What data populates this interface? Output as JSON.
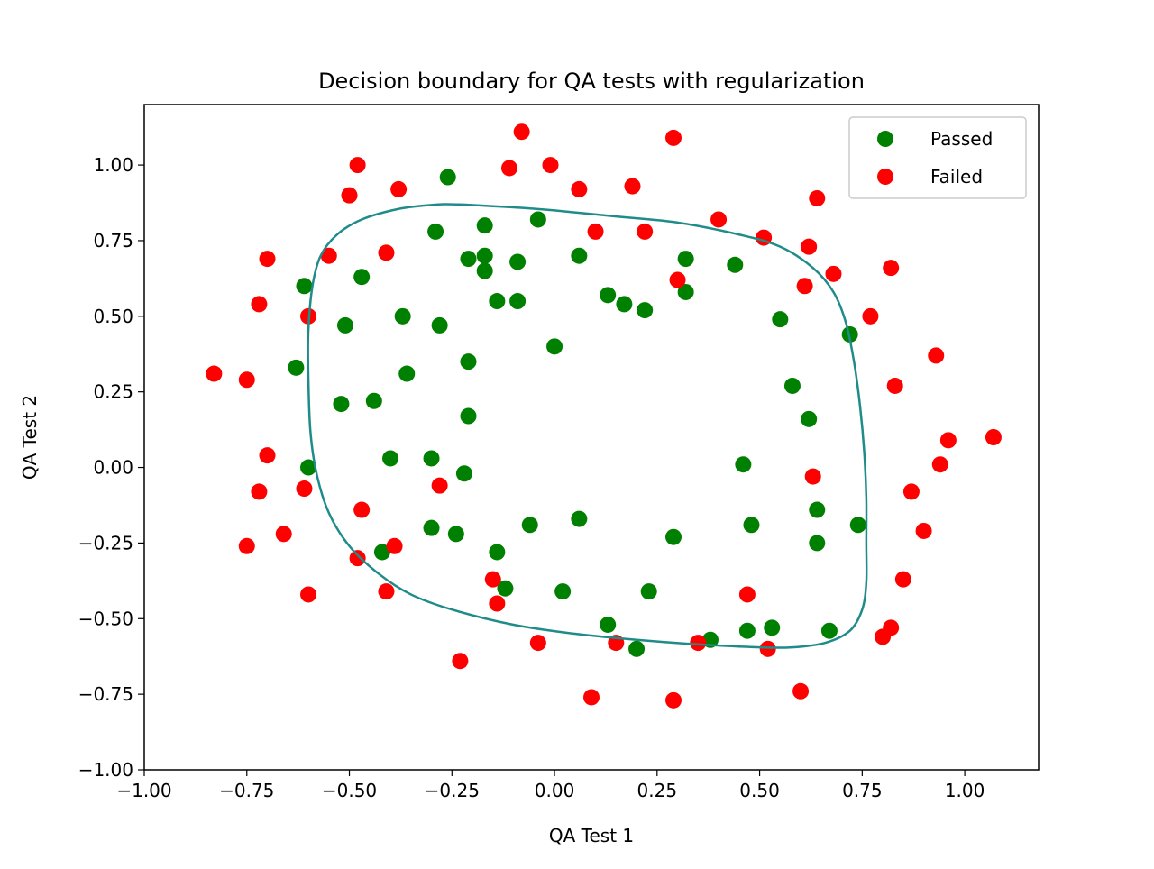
{
  "chart_data": {
    "type": "scatter",
    "title": "Decision boundary for QA tests with regularization",
    "xlabel": "QA Test 1",
    "ylabel": "QA Test 2",
    "xlim": [
      -1.0,
      1.18
    ],
    "ylim": [
      -1.0,
      1.2
    ],
    "x_ticks": [
      -1.0,
      -0.75,
      -0.5,
      -0.25,
      0.0,
      0.25,
      0.5,
      0.75,
      1.0
    ],
    "y_ticks": [
      -1.0,
      -0.75,
      -0.5,
      -0.25,
      0.0,
      0.25,
      0.5,
      0.75,
      1.0
    ],
    "x_tick_labels": [
      "−1.00",
      "−0.75",
      "−0.50",
      "−0.25",
      "0.00",
      "0.25",
      "0.50",
      "0.75",
      "1.00"
    ],
    "y_tick_labels": [
      "−1.00",
      "−0.75",
      "−0.50",
      "−0.25",
      "0.00",
      "0.25",
      "0.50",
      "0.75",
      "1.00"
    ],
    "legend_position": "top-right",
    "grid": false,
    "series": [
      {
        "name": "Passed",
        "color": "#008000",
        "points": [
          [
            -0.26,
            0.96
          ],
          [
            -0.29,
            0.78
          ],
          [
            -0.21,
            0.69
          ],
          [
            -0.17,
            0.65
          ],
          [
            -0.17,
            0.8
          ],
          [
            -0.04,
            0.82
          ],
          [
            -0.09,
            0.68
          ],
          [
            -0.14,
            0.55
          ],
          [
            -0.09,
            0.55
          ],
          [
            -0.61,
            0.6
          ],
          [
            -0.47,
            0.63
          ],
          [
            -0.51,
            0.47
          ],
          [
            -0.37,
            0.5
          ],
          [
            -0.28,
            0.47
          ],
          [
            -0.36,
            0.31
          ],
          [
            -0.21,
            0.35
          ],
          [
            -0.63,
            0.33
          ],
          [
            -0.52,
            0.21
          ],
          [
            -0.44,
            0.22
          ],
          [
            -0.21,
            0.17
          ],
          [
            -0.6,
            0.0
          ],
          [
            -0.4,
            0.03
          ],
          [
            -0.3,
            0.03
          ],
          [
            -0.22,
            -0.02
          ],
          [
            -0.3,
            -0.2
          ],
          [
            -0.24,
            -0.22
          ],
          [
            -0.06,
            -0.19
          ],
          [
            -0.14,
            -0.28
          ],
          [
            -0.42,
            -0.28
          ],
          [
            -0.12,
            -0.4
          ],
          [
            0.06,
            -0.17
          ],
          [
            0.02,
            -0.41
          ],
          [
            0.13,
            -0.52
          ],
          [
            0.2,
            -0.6
          ],
          [
            0.23,
            -0.41
          ],
          [
            0.29,
            -0.23
          ],
          [
            0.38,
            -0.57
          ],
          [
            0.46,
            0.01
          ],
          [
            0.47,
            -0.54
          ],
          [
            0.48,
            -0.19
          ],
          [
            0.53,
            -0.53
          ],
          [
            0.64,
            -0.25
          ],
          [
            0.64,
            -0.14
          ],
          [
            0.67,
            -0.54
          ],
          [
            0.74,
            -0.19
          ],
          [
            0.62,
            0.16
          ],
          [
            0.58,
            0.27
          ],
          [
            0.55,
            0.49
          ],
          [
            0.72,
            0.44
          ],
          [
            0.44,
            0.67
          ],
          [
            0.32,
            0.69
          ],
          [
            0.32,
            0.58
          ],
          [
            0.22,
            0.52
          ],
          [
            0.17,
            0.54
          ],
          [
            0.13,
            0.57
          ],
          [
            0.06,
            0.7
          ],
          [
            0.0,
            0.4
          ],
          [
            -0.17,
            0.7
          ]
        ]
      },
      {
        "name": "Failed",
        "color": "#ff0000",
        "points": [
          [
            -0.08,
            1.11
          ],
          [
            -0.11,
            0.99
          ],
          [
            -0.01,
            1.0
          ],
          [
            0.06,
            0.92
          ],
          [
            0.19,
            0.93
          ],
          [
            0.29,
            1.09
          ],
          [
            -0.48,
            1.0
          ],
          [
            -0.5,
            0.9
          ],
          [
            -0.38,
            0.92
          ],
          [
            0.1,
            0.78
          ],
          [
            0.22,
            0.78
          ],
          [
            0.4,
            0.82
          ],
          [
            0.51,
            0.76
          ],
          [
            0.64,
            0.89
          ],
          [
            0.62,
            0.73
          ],
          [
            0.68,
            0.64
          ],
          [
            0.61,
            0.6
          ],
          [
            0.3,
            0.62
          ],
          [
            0.77,
            0.5
          ],
          [
            0.82,
            0.66
          ],
          [
            0.93,
            0.37
          ],
          [
            0.83,
            0.27
          ],
          [
            0.96,
            0.09
          ],
          [
            1.07,
            0.1
          ],
          [
            0.94,
            0.01
          ],
          [
            0.87,
            -0.08
          ],
          [
            0.9,
            -0.21
          ],
          [
            0.63,
            -0.03
          ],
          [
            0.85,
            -0.37
          ],
          [
            0.82,
            -0.53
          ],
          [
            0.8,
            -0.56
          ],
          [
            0.6,
            -0.74
          ],
          [
            0.52,
            -0.6
          ],
          [
            0.47,
            -0.42
          ],
          [
            0.35,
            -0.58
          ],
          [
            0.29,
            -0.77
          ],
          [
            0.09,
            -0.76
          ],
          [
            0.15,
            -0.58
          ],
          [
            -0.04,
            -0.58
          ],
          [
            -0.14,
            -0.45
          ],
          [
            -0.15,
            -0.37
          ],
          [
            -0.23,
            -0.64
          ],
          [
            -0.28,
            -0.06
          ],
          [
            -0.39,
            -0.26
          ],
          [
            -0.41,
            -0.41
          ],
          [
            -0.47,
            -0.14
          ],
          [
            -0.48,
            -0.3
          ],
          [
            -0.6,
            -0.42
          ],
          [
            -0.61,
            -0.07
          ],
          [
            -0.66,
            -0.22
          ],
          [
            -0.72,
            -0.08
          ],
          [
            -0.75,
            -0.26
          ],
          [
            -0.7,
            0.04
          ],
          [
            -0.75,
            0.29
          ],
          [
            -0.83,
            0.31
          ],
          [
            -0.72,
            0.54
          ],
          [
            -0.7,
            0.69
          ],
          [
            -0.55,
            0.7
          ],
          [
            -0.41,
            0.71
          ],
          [
            -0.6,
            0.5
          ]
        ]
      }
    ],
    "boundary": {
      "color": "#1f8c8a",
      "points": [
        [
          -0.24,
          0.87
        ],
        [
          -0.1,
          0.86
        ],
        [
          0.0,
          0.85
        ],
        [
          0.15,
          0.83
        ],
        [
          0.3,
          0.81
        ],
        [
          0.45,
          0.77
        ],
        [
          0.55,
          0.73
        ],
        [
          0.63,
          0.66
        ],
        [
          0.68,
          0.58
        ],
        [
          0.71,
          0.48
        ],
        [
          0.73,
          0.35
        ],
        [
          0.745,
          0.2
        ],
        [
          0.755,
          0.05
        ],
        [
          0.76,
          -0.1
        ],
        [
          0.76,
          -0.25
        ],
        [
          0.76,
          -0.38
        ],
        [
          0.75,
          -0.47
        ],
        [
          0.72,
          -0.54
        ],
        [
          0.66,
          -0.58
        ],
        [
          0.58,
          -0.595
        ],
        [
          0.5,
          -0.595
        ],
        [
          0.35,
          -0.585
        ],
        [
          0.2,
          -0.57
        ],
        [
          0.05,
          -0.55
        ],
        [
          -0.1,
          -0.52
        ],
        [
          -0.25,
          -0.47
        ],
        [
          -0.35,
          -0.42
        ],
        [
          -0.43,
          -0.35
        ],
        [
          -0.5,
          -0.26
        ],
        [
          -0.55,
          -0.15
        ],
        [
          -0.58,
          -0.02
        ],
        [
          -0.595,
          0.12
        ],
        [
          -0.6,
          0.3
        ],
        [
          -0.6,
          0.45
        ],
        [
          -0.59,
          0.6
        ],
        [
          -0.57,
          0.7
        ],
        [
          -0.53,
          0.77
        ],
        [
          -0.47,
          0.82
        ],
        [
          -0.38,
          0.855
        ],
        [
          -0.3,
          0.868
        ],
        [
          -0.24,
          0.87
        ]
      ]
    }
  }
}
